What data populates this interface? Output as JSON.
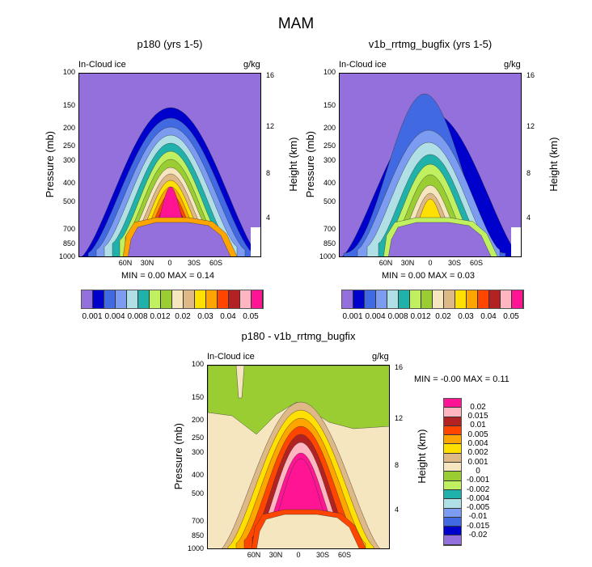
{
  "title": "MAM",
  "colors_abs": [
    "#9370DB",
    "#0000CD",
    "#4169E1",
    "#7B9CF0",
    "#B0E0E6",
    "#20B2AA",
    "#C0F060",
    "#9ACD32",
    "#F5E6C0",
    "#DEB887",
    "#FFE000",
    "#FFA500",
    "#FF4500",
    "#B22222",
    "#FFB6C1",
    "#FF1493"
  ],
  "colors_diff": [
    "#FF1493",
    "#FFB6C1",
    "#B22222",
    "#FF4500",
    "#FFA500",
    "#FFE000",
    "#DEB887",
    "#F5E6C0",
    "#9ACD32",
    "#C0F060",
    "#20B2AA",
    "#B0E0E6",
    "#7B9CF0",
    "#4169E1",
    "#0000CD",
    "#9370DB"
  ],
  "chart_data": [
    {
      "type": "heatmap",
      "title": "p180 (yrs 1-5)",
      "left_label": "In-Cloud ice",
      "right_label": "g/kg",
      "ylabel": "Pressure (mb)",
      "ylabel_right": "Height (km)",
      "y_ticks": [
        "100",
        "150",
        "200",
        "250",
        "300",
        "400",
        "500",
        "700",
        "850",
        "1000"
      ],
      "y_ticks_right": [
        "16",
        "12",
        "8",
        "4"
      ],
      "x_ticks": [
        "60N",
        "30N",
        "0",
        "30S",
        "60S"
      ],
      "stats": "MIN =   0.00  MAX =   0.14",
      "colorbar_labels": [
        "0.001",
        "0.004",
        "0.008",
        "0.012",
        "0.02",
        "0.03",
        "0.04",
        "0.05"
      ]
    },
    {
      "type": "heatmap",
      "title": "v1b_rrtmg_bugfix (yrs 1-5)",
      "left_label": "In-Cloud ice",
      "right_label": "g/kg",
      "ylabel": "Pressure (mb)",
      "ylabel_right": "Height (km)",
      "y_ticks": [
        "100",
        "150",
        "200",
        "250",
        "300",
        "400",
        "500",
        "700",
        "850",
        "1000"
      ],
      "y_ticks_right": [
        "16",
        "12",
        "8",
        "4"
      ],
      "x_ticks": [
        "60N",
        "30N",
        "0",
        "30S",
        "60S"
      ],
      "stats": "MIN =   0.00  MAX =   0.03",
      "colorbar_labels": [
        "0.001",
        "0.004",
        "0.008",
        "0.012",
        "0.02",
        "0.03",
        "0.04",
        "0.05"
      ]
    },
    {
      "type": "heatmap",
      "title": "p180 - v1b_rrtmg_bugfix",
      "left_label": "In-Cloud ice",
      "right_label": "g/kg",
      "ylabel": "Pressure (mb)",
      "ylabel_right": "Height (km)",
      "y_ticks": [
        "100",
        "150",
        "200",
        "250",
        "300",
        "400",
        "500",
        "700",
        "850",
        "1000"
      ],
      "y_ticks_right": [
        "16",
        "12",
        "8",
        "4"
      ],
      "x_ticks": [
        "60N",
        "30N",
        "0",
        "30S",
        "60S"
      ],
      "stats": "MIN =  -0.00  MAX =   0.11",
      "colorbar_labels": [
        "0.02",
        "0.015",
        "0.01",
        "0.005",
        "0.004",
        "0.002",
        "0.001",
        "0",
        "-0.001",
        "-0.002",
        "-0.004",
        "-0.005",
        "-0.01",
        "-0.015",
        "-0.02"
      ]
    }
  ]
}
